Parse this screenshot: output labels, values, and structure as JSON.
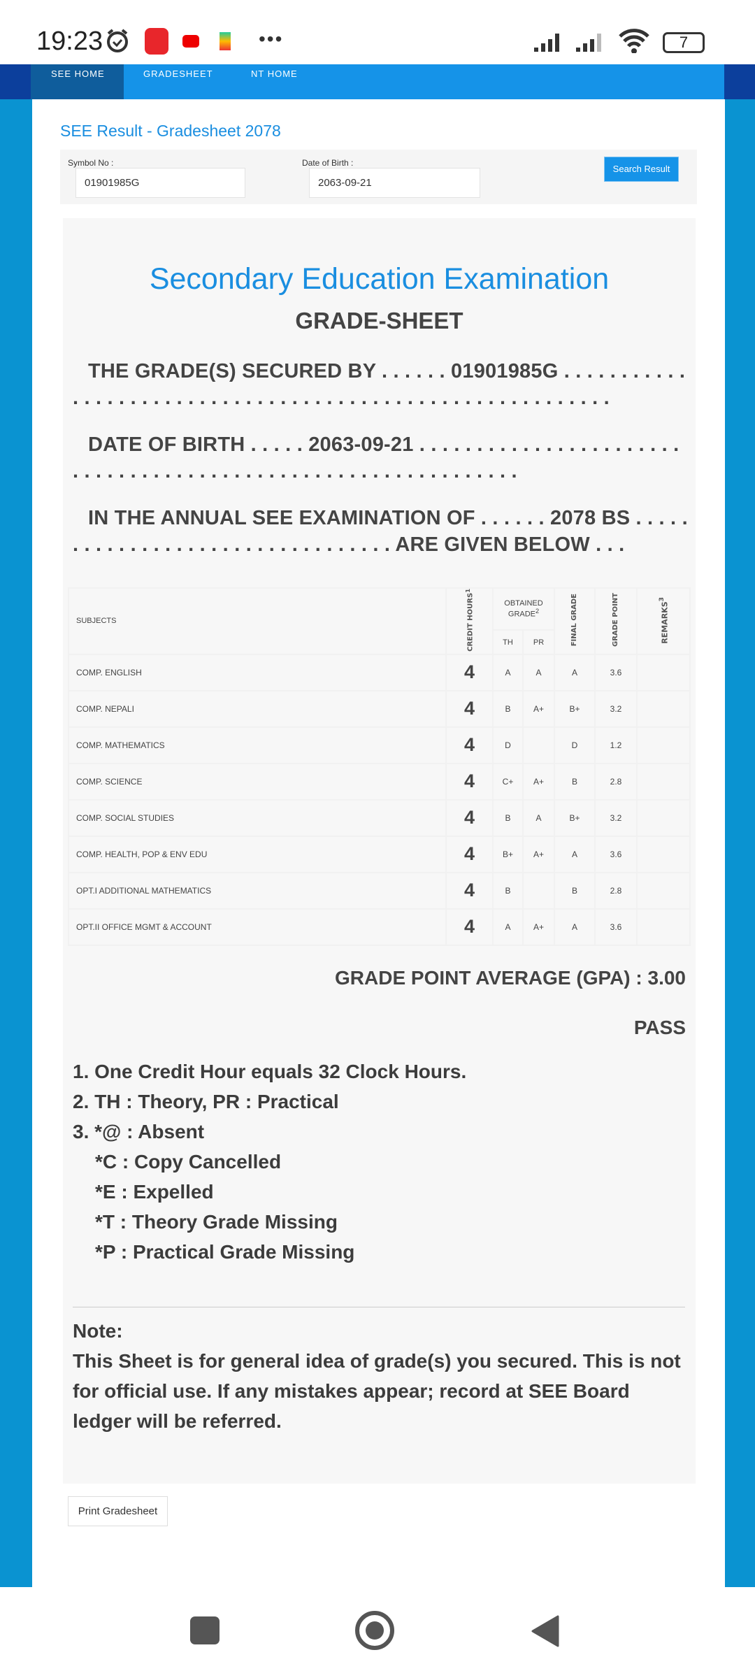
{
  "status_bar": {
    "time": "19:23",
    "battery": "7",
    "icons": [
      "alarm-icon",
      "news-app-icon",
      "youtube-icon",
      "play-games-icon",
      "more-icon",
      "signal-icon",
      "signal-icon",
      "wifi-icon",
      "battery-icon"
    ]
  },
  "nav": {
    "items": [
      "SEE HOME",
      "GRADESHEET",
      "NT HOME"
    ],
    "active": "SEE HOME"
  },
  "page_title": "SEE Result - Gradesheet 2078",
  "form": {
    "symbol_label": "Symbol No :",
    "symbol_value": "01901985G",
    "dob_label": "Date of Birth :",
    "dob_value": "2063-09-21",
    "search_label": "Search Result"
  },
  "sheet": {
    "exam_title": "Secondary Education Examination",
    "sheet_title": "GRADE-SHEET",
    "line1": "THE GRADE(S) SECURED BY . . . . . . 01901985G . . . . . . . . . . . . . . . . . . . . . . . . . . . . . . . . . . . . . . . . . . . . . . . . . . . . . . . . . .",
    "line2": "DATE OF BIRTH . . . . . 2063-09-21 . . . . . . . . . . . . . . . . . . . . . . . . . . . . . . . . . . . . . . . . . . . . . . . . . . . . . . . . . . . . . .",
    "line3": "IN THE ANNUAL SEE EXAMINATION OF . . . . . . 2078 BS . . . . . . . . . . . . . . . . . . . . . . . . . . . . . . . . . ARE GIVEN BELOW . . .",
    "headers": {
      "subjects": "SUBJECTS",
      "credit": "CREDIT HOURS",
      "credit_sup": "1",
      "obtained": "OBTAINED GRADE",
      "obtained_sup": "2",
      "th": "TH",
      "pr": "PR",
      "final": "FINAL GRADE",
      "gp": "GRADE POINT",
      "remarks": "REMARKS",
      "remarks_sup": "3"
    },
    "rows": [
      {
        "subject": "COMP. ENGLISH",
        "credit": "4",
        "th": "A",
        "pr": "A",
        "final": "A",
        "gp": "3.6",
        "remarks": ""
      },
      {
        "subject": "COMP. NEPALI",
        "credit": "4",
        "th": "B",
        "pr": "A+",
        "final": "B+",
        "gp": "3.2",
        "remarks": ""
      },
      {
        "subject": "COMP. MATHEMATICS",
        "credit": "4",
        "th": "D",
        "pr": "",
        "final": "D",
        "gp": "1.2",
        "remarks": ""
      },
      {
        "subject": "COMP. SCIENCE",
        "credit": "4",
        "th": "C+",
        "pr": "A+",
        "final": "B",
        "gp": "2.8",
        "remarks": ""
      },
      {
        "subject": "COMP. SOCIAL STUDIES",
        "credit": "4",
        "th": "B",
        "pr": "A",
        "final": "B+",
        "gp": "3.2",
        "remarks": ""
      },
      {
        "subject": "COMP. HEALTH, POP & ENV EDU",
        "credit": "4",
        "th": "B+",
        "pr": "A+",
        "final": "A",
        "gp": "3.6",
        "remarks": ""
      },
      {
        "subject": "OPT.I ADDITIONAL MATHEMATICS",
        "credit": "4",
        "th": "B",
        "pr": "",
        "final": "B",
        "gp": "2.8",
        "remarks": ""
      },
      {
        "subject": "OPT.II OFFICE MGMT & ACCOUNT",
        "credit": "4",
        "th": "A",
        "pr": "A+",
        "final": "A",
        "gp": "3.6",
        "remarks": ""
      }
    ],
    "gpa": "GRADE POINT AVERAGE (GPA) : 3.00",
    "result": "PASS",
    "footnotes": [
      "1. One Credit Hour equals 32 Clock Hours.",
      "2. TH : Theory, PR : Practical",
      "3. *@ : Absent",
      "*C : Copy Cancelled",
      "*E : Expelled",
      "*T : Theory Grade Missing",
      "*P : Practical Grade Missing"
    ],
    "note_title": "Note:",
    "note_text": "This Sheet is for general idea of grade(s) you secured. This is not for official use. If any mistakes appear; record at SEE Board ledger will be referred."
  },
  "print_label": "Print Gradesheet",
  "colors": {
    "accent": "#1593e8",
    "title_blue": "#1a8ee0",
    "page_bg": "#0a93d1",
    "nav_active": "#0f5d9c"
  }
}
